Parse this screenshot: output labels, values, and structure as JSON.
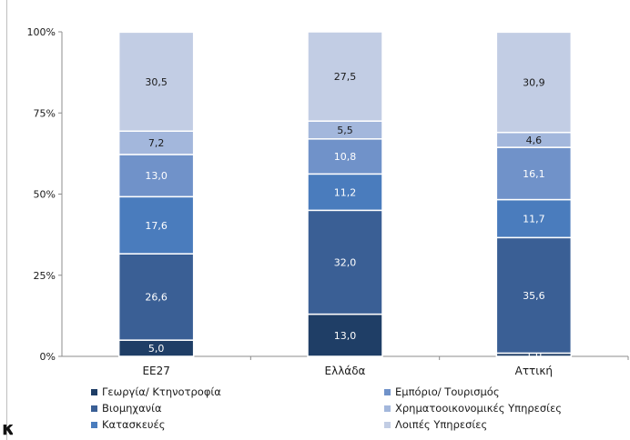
{
  "chart_data": {
    "type": "bar",
    "stacked": true,
    "categories": [
      "ΕΕ27",
      "Ελλάδα",
      "Αττική"
    ],
    "y_tick_labels": [
      "0%",
      "25%",
      "50%",
      "75%",
      "100%"
    ],
    "ylim": [
      0,
      100
    ],
    "series": [
      {
        "name": "Γεωργία/ Κτηνοτροφία",
        "values": [
          5.0,
          13.0,
          1.0
        ],
        "labels": [
          "5,0",
          "13,0",
          "1,0"
        ],
        "color": "#1f3e66"
      },
      {
        "name": "Βιομηχανία",
        "values": [
          26.6,
          32.0,
          35.6
        ],
        "labels": [
          "26,6",
          "32,0",
          "35,6"
        ],
        "color": "#3a5f95"
      },
      {
        "name": "Κατασκευές",
        "values": [
          17.6,
          11.2,
          11.7
        ],
        "labels": [
          "17,6",
          "11,2",
          "11,7"
        ],
        "color": "#4a7cbd"
      },
      {
        "name": "Εμπόριο/ Τουρισμός",
        "values": [
          13.0,
          10.8,
          16.1
        ],
        "labels": [
          "13,0",
          "10,8",
          "16,1"
        ],
        "color": "#7092c9"
      },
      {
        "name": "Χρηματοοικονομικές Υπηρεσίες",
        "values": [
          7.2,
          5.5,
          4.6
        ],
        "labels": [
          "7,2",
          "5,5",
          "4,6"
        ],
        "color": "#a3b7dc"
      },
      {
        "name": "Λοιπές Υπηρεσίες",
        "values": [
          30.5,
          27.5,
          30.9
        ],
        "labels": [
          "30,5",
          "27,5",
          "30,9"
        ],
        "color": "#c2cde4"
      }
    ],
    "legend_position": "bottom",
    "grid": false
  },
  "legend_order": [
    0,
    3,
    1,
    4,
    2,
    5
  ],
  "edge_fragment": "κ"
}
